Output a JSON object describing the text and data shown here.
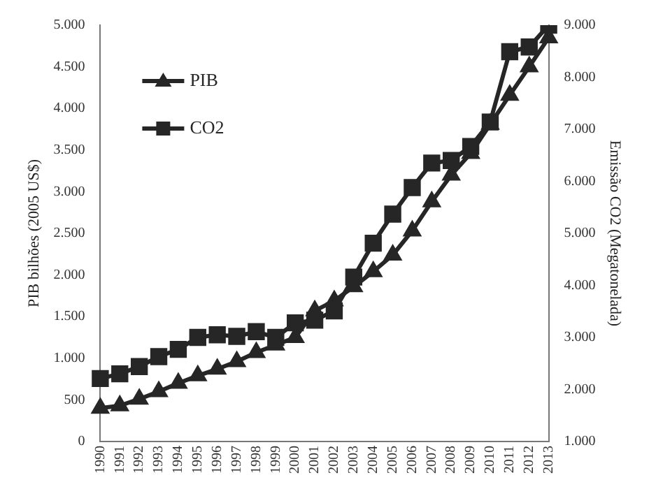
{
  "chart_data": {
    "type": "line",
    "ylabel": "PIB bilhões (2005 US$)",
    "y2label": "Emissão CO2 (Megatonelada)",
    "categories": [
      "1990",
      "1991",
      "1992",
      "1993",
      "1994",
      "1995",
      "1996",
      "1997",
      "1998",
      "1999",
      "2000",
      "2001",
      "2002",
      "2003",
      "2004",
      "2005",
      "2006",
      "2007",
      "2008",
      "2009",
      "2010",
      "2011",
      "2012",
      "2013"
    ],
    "series": [
      {
        "name": "PIB",
        "color": "#262626",
        "marker": "triangle",
        "values": [
          400,
          430,
          510,
          600,
          700,
          790,
          870,
          960,
          1070,
          1160,
          1250,
          1570,
          1690,
          1860,
          2040,
          2240,
          2530,
          2880,
          3200,
          3460,
          3810,
          4160,
          4500,
          4850
        ]
      },
      {
        "name": "CO2",
        "color": "#262626",
        "marker": "square",
        "axis": "y2",
        "values": [
          2210,
          2300,
          2440,
          2630,
          2770,
          3000,
          3050,
          3020,
          3110,
          3000,
          3280,
          3330,
          3510,
          4160,
          4810,
          5370,
          5880,
          6350,
          6400,
          6670,
          7140,
          8490,
          8580,
          9000
        ]
      }
    ],
    "ylim": [
      0,
      5000
    ],
    "yticks": [
      {
        "value": 0,
        "label": "0"
      },
      {
        "value": 500,
        "label": "500"
      },
      {
        "value": 1000,
        "label": "1.000"
      },
      {
        "value": 1500,
        "label": "1.500"
      },
      {
        "value": 2000,
        "label": "2.000"
      },
      {
        "value": 2500,
        "label": "2.500"
      },
      {
        "value": 3000,
        "label": "3.000"
      },
      {
        "value": 3500,
        "label": "3.500"
      },
      {
        "value": 4000,
        "label": "4.000"
      },
      {
        "value": 4500,
        "label": "4.500"
      },
      {
        "value": 5000,
        "label": "5.000"
      }
    ],
    "y2lim": [
      1000,
      9000
    ],
    "y2ticks": [
      {
        "value": 1000,
        "label": "1.000"
      },
      {
        "value": 2000,
        "label": "2.000"
      },
      {
        "value": 3000,
        "label": "3.000"
      },
      {
        "value": 4000,
        "label": "4.000"
      },
      {
        "value": 5000,
        "label": "5.000"
      },
      {
        "value": 6000,
        "label": "6.000"
      },
      {
        "value": 7000,
        "label": "7.000"
      },
      {
        "value": 8000,
        "label": "8.000"
      },
      {
        "value": 9000,
        "label": "9.000"
      }
    ],
    "grid": false,
    "legend": "top left",
    "line_style": "solid"
  }
}
